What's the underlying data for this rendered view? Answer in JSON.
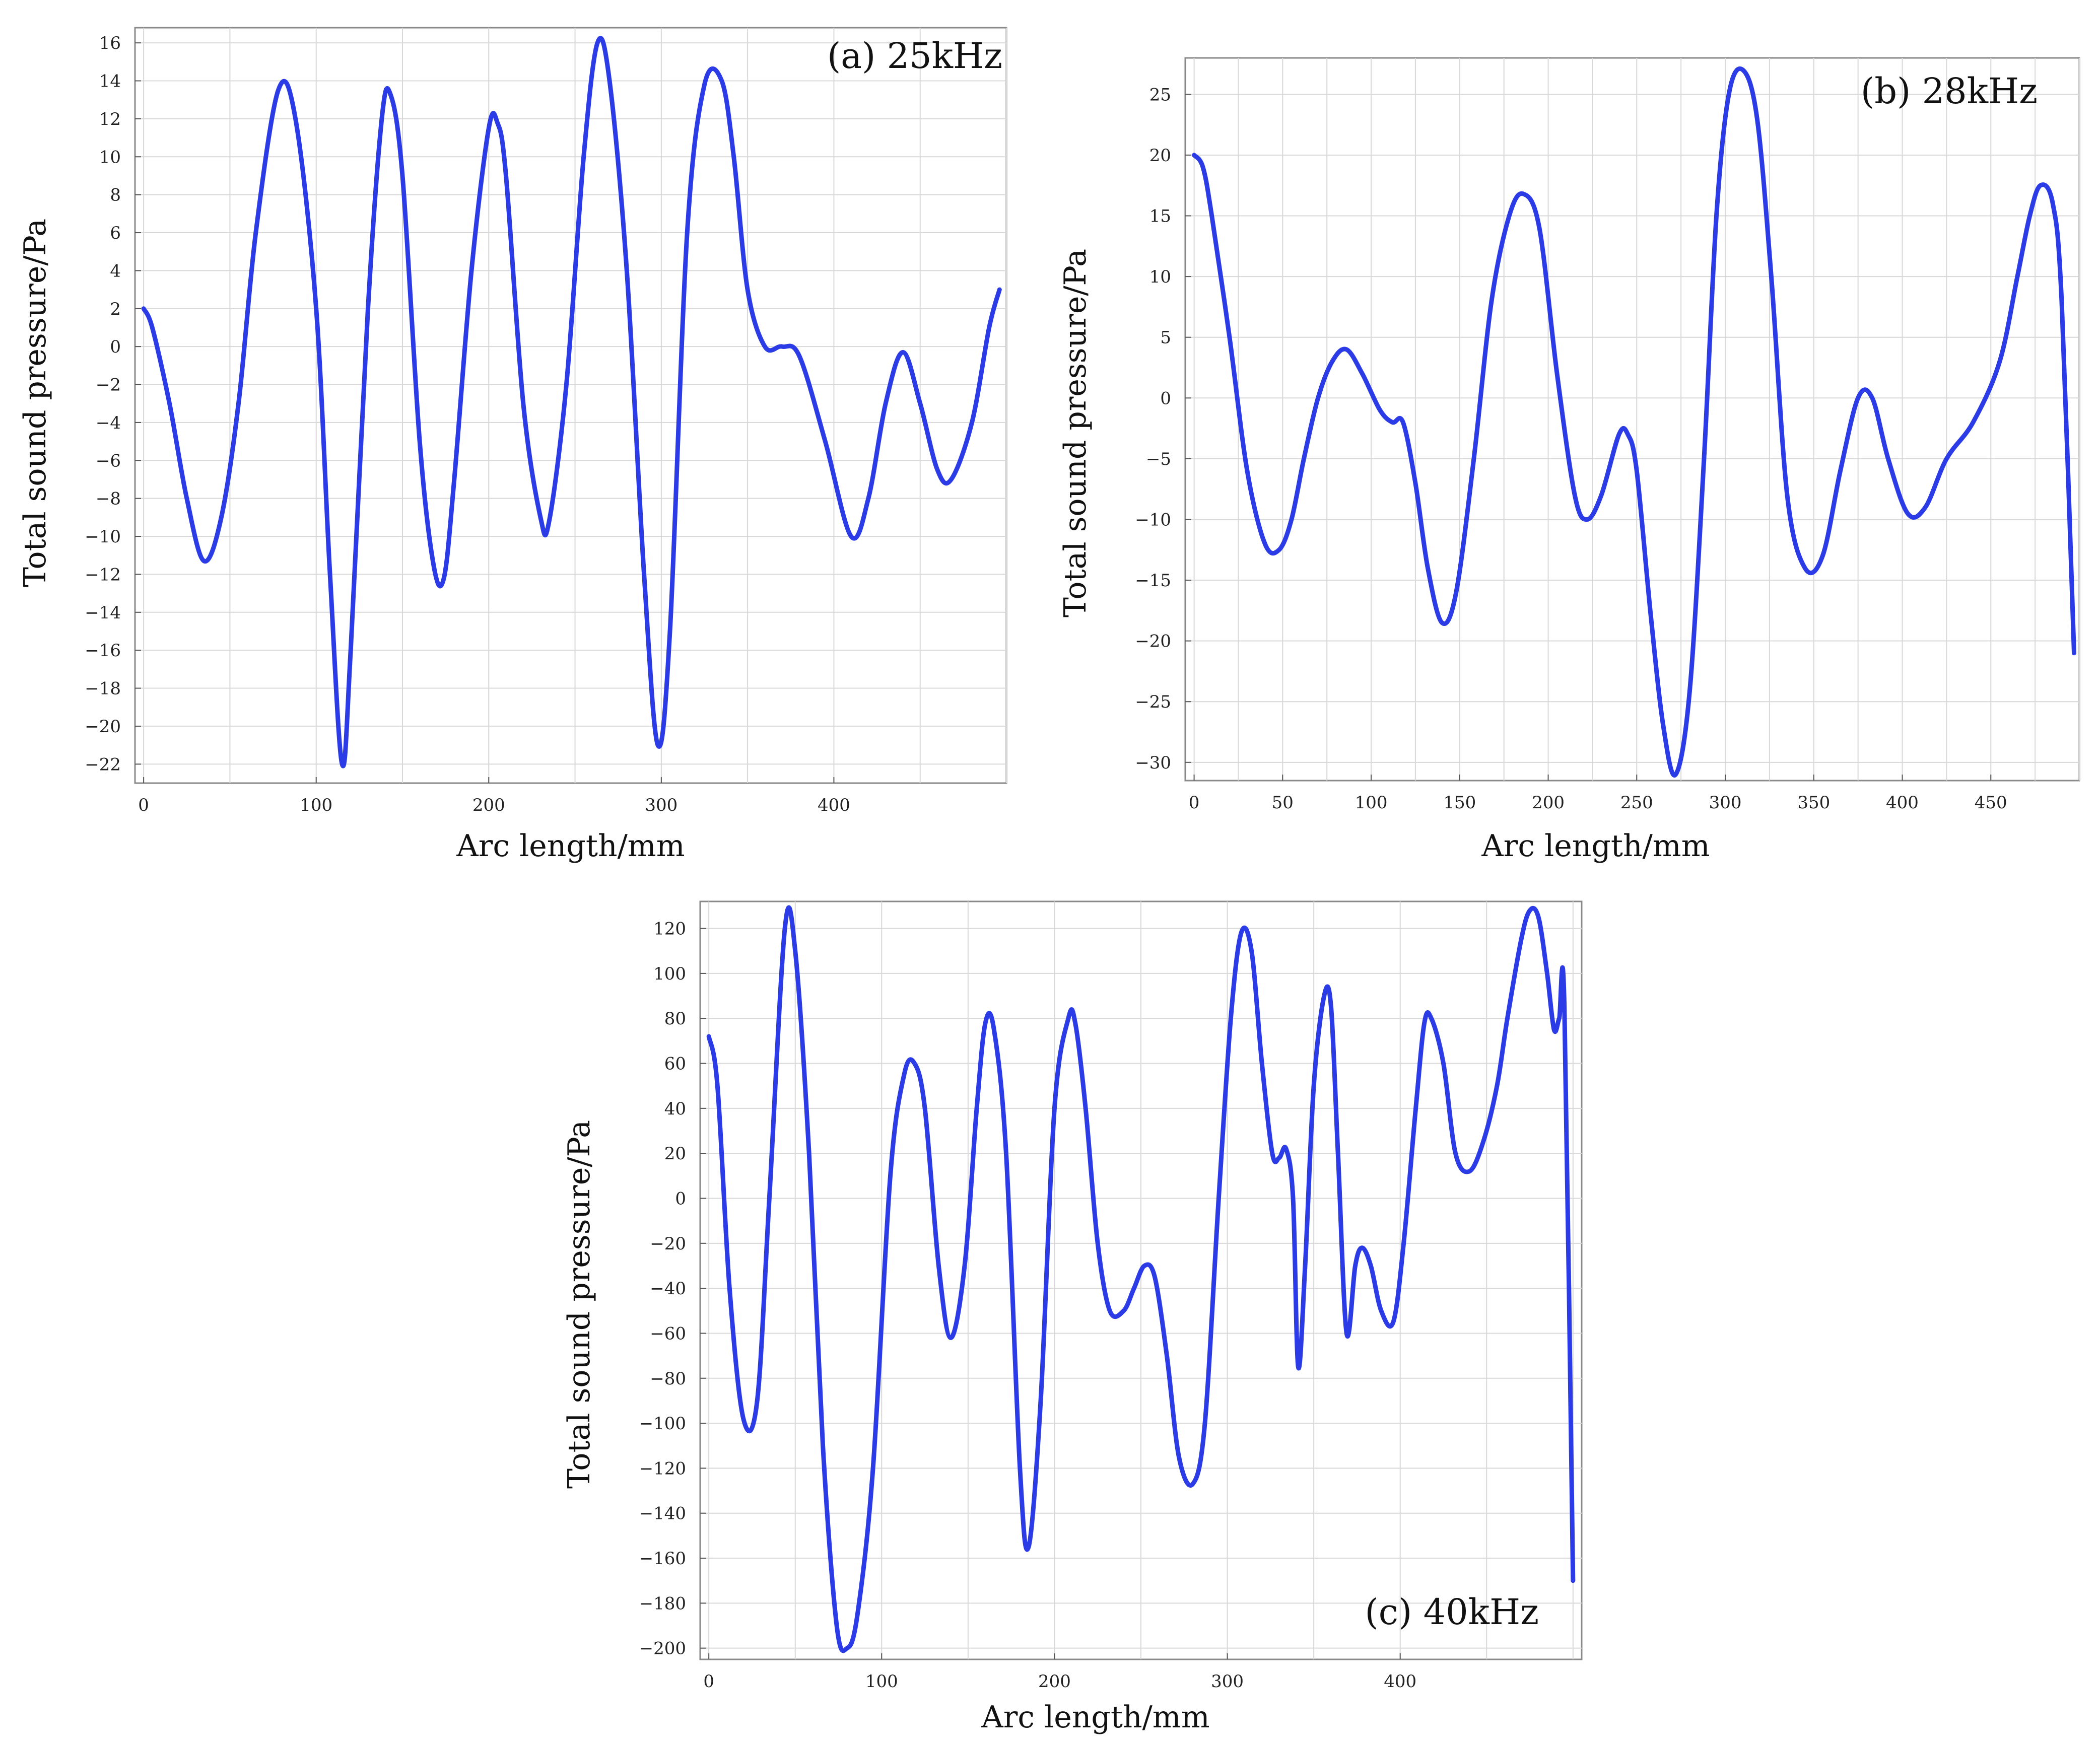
{
  "colors": {
    "line": "#2b3be6",
    "grid": "#d8d8d8",
    "frame": "#8a8a8a"
  },
  "chart_data": [
    {
      "type": "line",
      "panel_label": "(a) 25kHz",
      "xlabel": "Arc length/mm",
      "ylabel": "Total sound pressure/Pa",
      "xlim": [
        -5,
        500
      ],
      "ylim": [
        -23,
        16.8
      ],
      "xticks": [
        0,
        100,
        200,
        300,
        400
      ],
      "xtick_labels": [
        "0",
        "100",
        "200",
        "300",
        "400"
      ],
      "yticks": [
        16,
        14,
        12,
        10,
        8,
        6,
        4,
        2,
        0,
        -2,
        -4,
        -6,
        -8,
        -10,
        -12,
        -14,
        -16,
        -18,
        -20,
        -22
      ],
      "ytick_labels": [
        "16",
        "14",
        "12",
        "10",
        "8",
        "6",
        "4",
        "2",
        "0",
        "−2",
        "−4",
        "−6",
        "−8",
        "−10",
        "−12",
        "−14",
        "−16",
        "−18",
        "−20",
        "−22"
      ],
      "grid": true,
      "x": [
        0,
        5,
        15,
        25,
        35,
        45,
        55,
        65,
        78,
        88,
        100,
        108,
        115,
        120,
        130,
        138,
        143,
        150,
        160,
        168,
        174,
        180,
        190,
        200,
        205,
        210,
        220,
        230,
        235,
        245,
        255,
        263,
        270,
        280,
        290,
        298,
        305,
        315,
        325,
        335,
        342,
        350,
        360,
        370,
        380,
        395,
        410,
        420,
        430,
        440,
        450,
        460,
        468,
        480,
        490,
        496
      ],
      "y": [
        2,
        1,
        -3,
        -8,
        -11.3,
        -9,
        -3,
        6,
        13.5,
        12,
        2,
        -12,
        -22,
        -16,
        2,
        12,
        13.3,
        9,
        -5,
        -11.5,
        -12.2,
        -7,
        4,
        11.5,
        11.8,
        9,
        -3,
        -9,
        -9.2,
        -2,
        10,
        16,
        14,
        4,
        -12,
        -21,
        -15,
        6,
        13.8,
        14,
        10,
        3,
        0,
        0,
        -0.5,
        -5,
        -10,
        -8,
        -3,
        -0.3,
        -3,
        -6.5,
        -7,
        -4,
        1,
        3
      ]
    },
    {
      "type": "line",
      "panel_label": "(b) 28kHz",
      "xlabel": "Arc length/mm",
      "ylabel": "Total sound pressure/Pa",
      "xlim": [
        -5,
        500
      ],
      "ylim": [
        -31.5,
        28
      ],
      "xticks": [
        0,
        50,
        100,
        150,
        200,
        250,
        300,
        350,
        400,
        450
      ],
      "xtick_labels": [
        "0",
        "50",
        "100",
        "150",
        "200",
        "250",
        "300",
        "350",
        "400",
        "450"
      ],
      "yticks": [
        25,
        20,
        15,
        10,
        5,
        0,
        -5,
        -10,
        -15,
        -20,
        -25,
        -30
      ],
      "ytick_labels": [
        "25",
        "20",
        "15",
        "10",
        "5",
        "0",
        "−5",
        "−10",
        "−15",
        "−20",
        "−25",
        "−30"
      ],
      "grid": true,
      "x": [
        0,
        5,
        10,
        20,
        30,
        40,
        48,
        55,
        62,
        70,
        78,
        86,
        95,
        105,
        112,
        118,
        125,
        132,
        140,
        148,
        158,
        168,
        178,
        186,
        195,
        205,
        215,
        222,
        230,
        240,
        245,
        250,
        258,
        265,
        272,
        280,
        288,
        295,
        302,
        310,
        318,
        326,
        335,
        345,
        355,
        365,
        375,
        383,
        392,
        403,
        413,
        425,
        440,
        455,
        465,
        472,
        478,
        485,
        490,
        497
      ],
      "y": [
        20,
        19,
        15,
        5,
        -6,
        -12,
        -12.5,
        -10,
        -5,
        0,
        3,
        4,
        2,
        -1,
        -2,
        -2,
        -7,
        -14,
        -18.5,
        -16,
        -5,
        8,
        15,
        16.8,
        14,
        2,
        -8,
        -10,
        -8,
        -3,
        -3,
        -6,
        -18,
        -27,
        -31,
        -24,
        -5,
        15,
        25,
        27,
        23,
        10,
        -8,
        -14,
        -13,
        -6,
        0,
        0,
        -5,
        -9.5,
        -9,
        -5,
        -2,
        3,
        10,
        15,
        17.5,
        16,
        8,
        -21
      ]
    },
    {
      "type": "line",
      "panel_label": "(c) 40kHz",
      "xlabel": "Arc length/mm",
      "ylabel": "Total sound pressure/Pa",
      "xlim": [
        -5,
        505
      ],
      "ylim": [
        -205,
        132
      ],
      "xticks": [
        0,
        100,
        200,
        300,
        400
      ],
      "xtick_labels": [
        "0",
        "100",
        "200",
        "300",
        "400"
      ],
      "yticks": [
        120,
        100,
        80,
        60,
        40,
        20,
        0,
        -20,
        -40,
        -60,
        -80,
        -100,
        -120,
        -140,
        -160,
        -180,
        -200
      ],
      "ytick_labels": [
        "120",
        "100",
        "80",
        "60",
        "40",
        "20",
        "0",
        "−20",
        "−40",
        "−60",
        "−80",
        "−100",
        "−120",
        "−140",
        "−160",
        "−180",
        "−200"
      ],
      "grid": true,
      "x": [
        0,
        5,
        12,
        20,
        28,
        35,
        44,
        50,
        58,
        66,
        74,
        80,
        86,
        95,
        105,
        113,
        119,
        125,
        133,
        140,
        148,
        155,
        160,
        165,
        172,
        180,
        185,
        192,
        200,
        208,
        212,
        218,
        225,
        232,
        240,
        246,
        252,
        258,
        265,
        272,
        280,
        287,
        295,
        302,
        308,
        314,
        320,
        326,
        330,
        334,
        338,
        341,
        345,
        350,
        356,
        360,
        364,
        369,
        374,
        378,
        383,
        389,
        396,
        402,
        409,
        414,
        418,
        425,
        432,
        440,
        448,
        456,
        462,
        470,
        475,
        480,
        485,
        489,
        492,
        495,
        500
      ],
      "y": [
        72,
        50,
        -40,
        -98,
        -90,
        0,
        120,
        110,
        20,
        -110,
        -190,
        -200,
        -185,
        -120,
        10,
        55,
        60,
        40,
        -30,
        -62,
        -30,
        40,
        78,
        75,
        20,
        -120,
        -155,
        -90,
        40,
        80,
        78,
        40,
        -20,
        -50,
        -50,
        -40,
        -30,
        -35,
        -70,
        -115,
        -127,
        -100,
        0,
        80,
        118,
        110,
        60,
        20,
        18,
        22,
        0,
        -75,
        -30,
        50,
        90,
        85,
        20,
        -60,
        -30,
        -22,
        -30,
        -50,
        -55,
        -20,
        40,
        78,
        80,
        60,
        20,
        12,
        25,
        50,
        80,
        115,
        128,
        125,
        100,
        75,
        80,
        85,
        -170
      ]
    }
  ]
}
